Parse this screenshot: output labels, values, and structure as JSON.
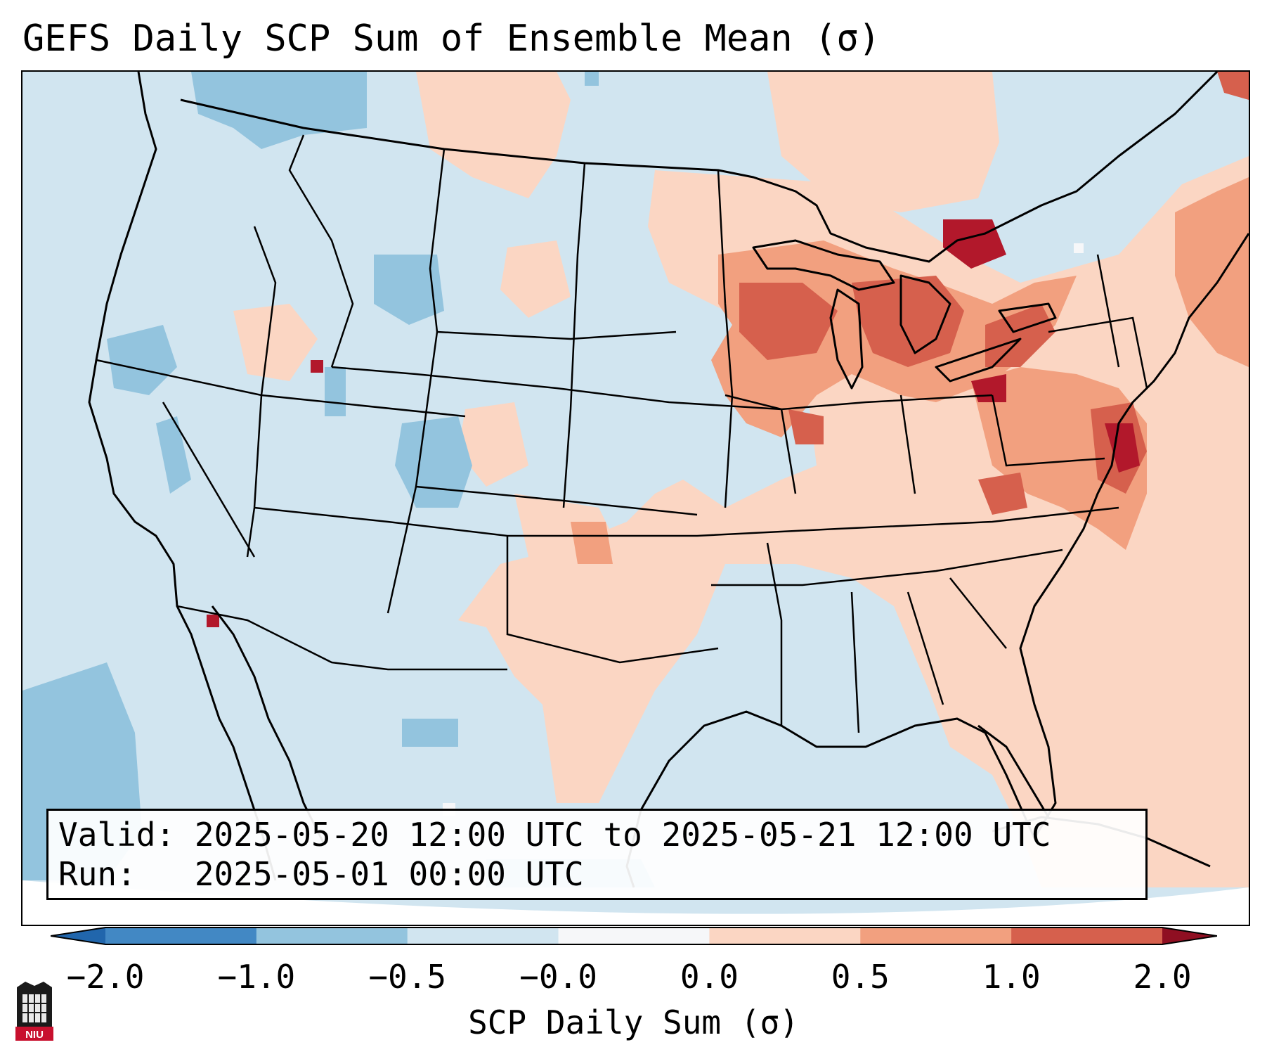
{
  "title": "GEFS Daily SCP Sum of Ensemble Mean (σ)",
  "info": {
    "valid_line": "Valid: 2025-05-20 12:00 UTC to 2025-05-21 12:00 UTC",
    "run_line": "Run:   2025-05-01 00:00 UTC"
  },
  "colorbar": {
    "label": "SCP Daily Sum (σ)",
    "ticks": [
      "−2.0",
      "−1.0",
      "−0.5",
      "−0.0",
      "0.0",
      "0.5",
      "1.0",
      "2.0"
    ],
    "colors": [
      "#4288c4",
      "#93c4de",
      "#d1e5f0",
      "#f6f7f9",
      "#fbd6c3",
      "#f2a07f",
      "#d6604d",
      "#b2182b"
    ],
    "under_color": "#2166ac",
    "over_color": "#8f0f22"
  },
  "map": {
    "background_color": "#d1e5f0",
    "region": "contiguous United States with surrounding Canada, Mexico, Cuba and Atlantic/Pacific waters",
    "features": [
      "state borders",
      "coastlines",
      "country borders"
    ]
  },
  "logo": {
    "text": "NIU"
  }
}
